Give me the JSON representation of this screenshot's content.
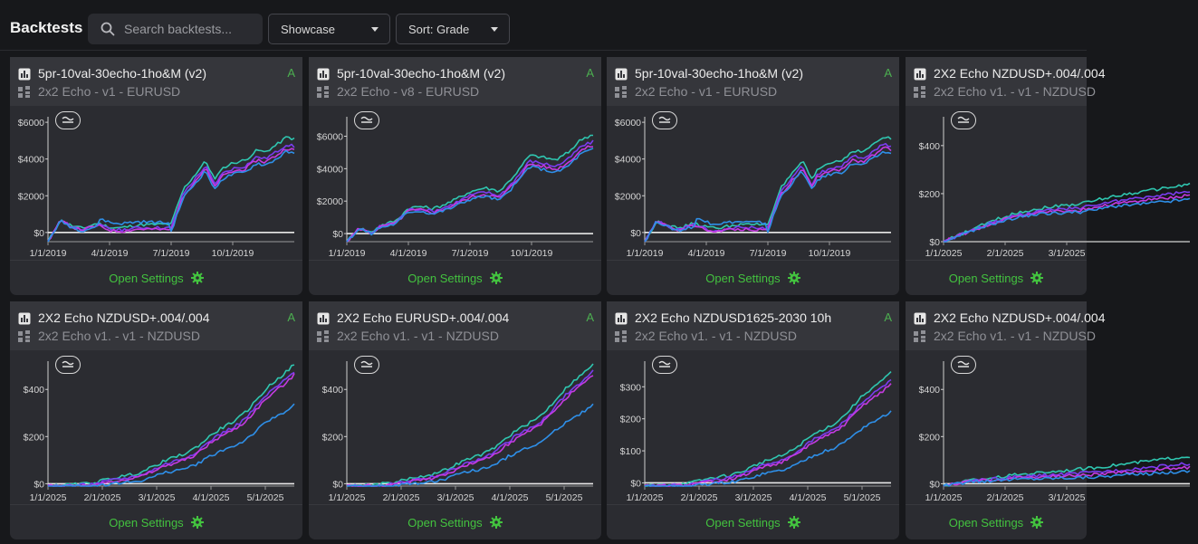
{
  "header": {
    "title": "Backtests",
    "search_placeholder": "Search backtests...",
    "filter_label": "Showcase",
    "sort_label": "Sort: Grade"
  },
  "colors": {
    "accent_green": "#43c23f",
    "series": [
      "#2fc6b0",
      "#7a3cf0",
      "#c53ae0",
      "#2e8fe8"
    ]
  },
  "cards": [
    {
      "title": "5pr-10val-30echo-1ho&M (v2)",
      "subtitle": "2x2 Echo - v1 - EURUSD",
      "grade": "A",
      "action": "Open Settings",
      "chart_data": {
        "type": "line",
        "y_ticks": [
          "$6000",
          "$4000",
          "$2000",
          "$0"
        ],
        "y_tick_values": [
          6000,
          4000,
          2000,
          0
        ],
        "x_ticks": [
          "1/1/2019",
          "4/1/2019",
          "7/1/2019",
          "10/1/2019"
        ],
        "ylim": [
          -500,
          6300
        ],
        "shape": "y2019a"
      }
    },
    {
      "title": "5pr-10val-30echo-1ho&M (v2)",
      "subtitle": "2x2 Echo - v8 - EURUSD",
      "grade": "A",
      "action": "Open Settings",
      "chart_data": {
        "type": "line",
        "y_ticks": [
          "$6000",
          "$4000",
          "$2000",
          "$0"
        ],
        "y_tick_values": [
          6000,
          4000,
          2000,
          0
        ],
        "x_ticks": [
          "1/1/2019",
          "4/1/2019",
          "7/1/2019",
          "10/1/2019"
        ],
        "ylim": [
          -500,
          7200
        ],
        "shape": "y2019b"
      }
    },
    {
      "title": "5pr-10val-30echo-1ho&M (v2)",
      "subtitle": "2x2 Echo - v1 - EURUSD",
      "grade": "A",
      "action": "Open Settings",
      "chart_data": {
        "type": "line",
        "y_ticks": [
          "$6000",
          "$4000",
          "$2000",
          "$0"
        ],
        "y_tick_values": [
          6000,
          4000,
          2000,
          0
        ],
        "x_ticks": [
          "1/1/2019",
          "4/1/2019",
          "7/1/2019",
          "10/1/2019"
        ],
        "ylim": [
          -500,
          6300
        ],
        "shape": "y2019a"
      }
    },
    {
      "title": "2X2 Echo NZDUSD+.004/.004",
      "subtitle": "2x2 Echo v1. - v1 - NZDUSD",
      "grade": "",
      "action": "Open Settings",
      "chart_data": {
        "type": "line",
        "y_ticks": [
          "$400",
          "$200",
          "$0"
        ],
        "y_tick_values": [
          400,
          200,
          0
        ],
        "x_ticks": [
          "1/1/2025",
          "2/1/2025",
          "3/1/2025"
        ],
        "ylim": [
          0,
          520
        ],
        "shape": "partial"
      }
    },
    {
      "title": "2X2 Echo NZDUSD+.004/.004",
      "subtitle": "2x2 Echo v1. - v1 - NZDUSD",
      "grade": "A",
      "action": "Open Settings",
      "chart_data": {
        "type": "line",
        "y_ticks": [
          "$400",
          "$200",
          "$0"
        ],
        "y_tick_values": [
          400,
          200,
          0
        ],
        "x_ticks": [
          "1/1/2025",
          "2/1/2025",
          "3/1/2025",
          "4/1/2025",
          "5/1/2025"
        ],
        "ylim": [
          -10,
          520
        ],
        "shape": "y2025"
      }
    },
    {
      "title": "2X2 Echo EURUSD+.004/.004",
      "subtitle": "2x2 Echo v1. - v1 - NZDUSD",
      "grade": "A",
      "action": "Open Settings",
      "chart_data": {
        "type": "line",
        "y_ticks": [
          "$400",
          "$200",
          "$0"
        ],
        "y_tick_values": [
          400,
          200,
          0
        ],
        "x_ticks": [
          "1/1/2025",
          "2/1/2025",
          "3/1/2025",
          "4/1/2025",
          "5/1/2025"
        ],
        "ylim": [
          -10,
          520
        ],
        "shape": "y2025"
      }
    },
    {
      "title": "2X2 Echo NZDUSD1625-2030 10h",
      "subtitle": "2x2 Echo v1. - v1 - NZDUSD",
      "grade": "A",
      "action": "Open Settings",
      "chart_data": {
        "type": "line",
        "y_ticks": [
          "$300",
          "$200",
          "$100",
          "$0"
        ],
        "y_tick_values": [
          300,
          200,
          100,
          0
        ],
        "x_ticks": [
          "1/1/2025",
          "2/1/2025",
          "3/1/2025",
          "4/1/2025",
          "5/1/2025"
        ],
        "ylim": [
          -10,
          380
        ],
        "shape": "y2025b"
      }
    },
    {
      "title": "2X2 Echo NZDUSD+.004/.004",
      "subtitle": "2x2 Echo v1. - v1 - NZDUSD",
      "grade": "",
      "action": "Open Settings",
      "chart_data": {
        "type": "line",
        "y_ticks": [
          "$400",
          "$200",
          "$0"
        ],
        "y_tick_values": [
          400,
          200,
          0
        ],
        "x_ticks": [
          "1/1/2025",
          "2/1/2025",
          "3/1/2025"
        ],
        "ylim": [
          -10,
          520
        ],
        "shape": "partial2"
      }
    }
  ]
}
